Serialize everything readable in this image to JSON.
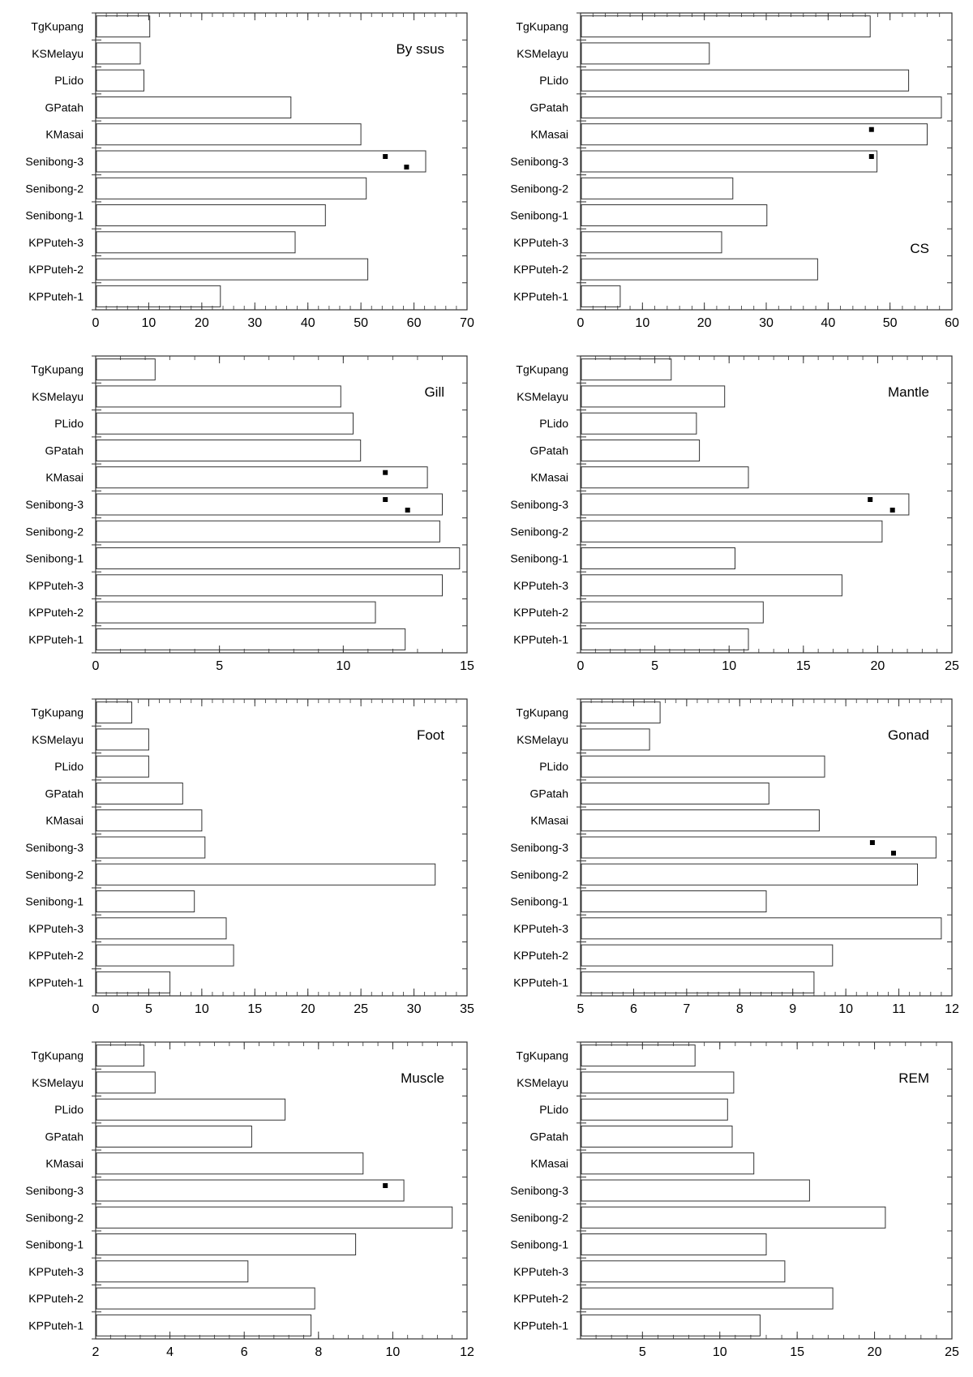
{
  "chart_data": [
    {
      "type": "bar",
      "orientation": "horizontal",
      "title": "By ssus",
      "title_position": "top-right",
      "categories": [
        "TgKupang",
        "KSMelayu",
        "PLido",
        "GPatah",
        "KMasai",
        "Senibong-3",
        "Senibong-2",
        "Senibong-1",
        "KPPuteh-3",
        "KPPuteh-2",
        "KPPuteh-1"
      ],
      "values": [
        10.2,
        8.4,
        9.1,
        36.8,
        50.0,
        62.2,
        51.0,
        43.3,
        37.6,
        51.3,
        23.5
      ],
      "xlim": [
        0,
        70
      ],
      "xticks": [
        0,
        10,
        20,
        30,
        40,
        50,
        60,
        70
      ],
      "tick_labels": [
        "0",
        "10",
        "20",
        "30",
        "40",
        "50",
        "60",
        "70"
      ],
      "markers": [
        {
          "category": "Senibong-3",
          "x": 54.6,
          "row": "upper"
        },
        {
          "category": "Senibong-3",
          "x": 58.6,
          "row": "lower"
        }
      ],
      "grid": false
    },
    {
      "type": "bar",
      "orientation": "horizontal",
      "title": "CS",
      "title_position": "bottom-right",
      "categories": [
        "TgKupang",
        "KSMelayu",
        "PLido",
        "GPatah",
        "KMasai",
        "Senibong-3",
        "Senibong-2",
        "Senibong-1",
        "KPPuteh-3",
        "KPPuteh-2",
        "KPPuteh-1"
      ],
      "values": [
        46.8,
        20.8,
        53.0,
        58.3,
        56.0,
        47.9,
        24.6,
        30.1,
        22.8,
        38.3,
        6.4
      ],
      "xlim": [
        0,
        60
      ],
      "xticks": [
        0,
        10,
        20,
        30,
        40,
        50,
        60
      ],
      "tick_labels": [
        "0",
        "10",
        "20",
        "30",
        "40",
        "50",
        "60"
      ],
      "markers": [
        {
          "category": "KMasai",
          "x": 47.0,
          "row": "upper"
        },
        {
          "category": "Senibong-3",
          "x": 47.0,
          "row": "upper"
        }
      ],
      "grid": false
    },
    {
      "type": "bar",
      "orientation": "horizontal",
      "title": "Gill",
      "title_position": "top-right",
      "categories": [
        "TgKupang",
        "KSMelayu",
        "PLido",
        "GPatah",
        "KMasai",
        "Senibong-3",
        "Senibong-2",
        "Senibong-1",
        "KPPuteh-3",
        "KPPuteh-2",
        "KPPuteh-1"
      ],
      "values": [
        2.4,
        9.9,
        10.4,
        10.7,
        13.4,
        14.0,
        13.9,
        14.7,
        14.0,
        11.3,
        12.5
      ],
      "xlim": [
        0,
        15
      ],
      "xticks": [
        0,
        5,
        10,
        15
      ],
      "tick_labels": [
        "0",
        "5",
        "10",
        "15"
      ],
      "markers": [
        {
          "category": "KMasai",
          "x": 11.7,
          "row": "upper"
        },
        {
          "category": "Senibong-3",
          "x": 11.7,
          "row": "upper"
        },
        {
          "category": "Senibong-3",
          "x": 12.6,
          "row": "lower"
        }
      ],
      "grid": false
    },
    {
      "type": "bar",
      "orientation": "horizontal",
      "title": "Mantle",
      "title_position": "top-right",
      "categories": [
        "TgKupang",
        "KSMelayu",
        "PLido",
        "GPatah",
        "KMasai",
        "Senibong-3",
        "Senibong-2",
        "Senibong-1",
        "KPPuteh-3",
        "KPPuteh-2",
        "KPPuteh-1"
      ],
      "values": [
        6.1,
        9.7,
        7.8,
        8.0,
        11.3,
        22.1,
        20.3,
        10.4,
        17.6,
        12.3,
        11.3
      ],
      "xlim": [
        0,
        25
      ],
      "xticks": [
        0,
        5,
        10,
        15,
        20,
        25
      ],
      "tick_labels": [
        "0",
        "5",
        "10",
        "15",
        "20",
        "25"
      ],
      "markers": [
        {
          "category": "Senibong-3",
          "x": 19.5,
          "row": "upper"
        },
        {
          "category": "Senibong-3",
          "x": 21.0,
          "row": "lower"
        }
      ],
      "grid": false
    },
    {
      "type": "bar",
      "orientation": "horizontal",
      "title": "Foot",
      "title_position": "top-right",
      "categories": [
        "TgKupang",
        "KSMelayu",
        "PLido",
        "GPatah",
        "KMasai",
        "Senibong-3",
        "Senibong-2",
        "Senibong-1",
        "KPPuteh-3",
        "KPPuteh-2",
        "KPPuteh-1"
      ],
      "values": [
        3.4,
        5.0,
        5.0,
        8.2,
        10.0,
        10.3,
        32.0,
        9.3,
        12.3,
        13.0,
        7.0
      ],
      "xlim": [
        0,
        35
      ],
      "xticks": [
        0,
        5,
        10,
        15,
        20,
        25,
        30,
        35
      ],
      "tick_labels": [
        "0",
        "5",
        "10",
        "15",
        "20",
        "25",
        "30",
        "35"
      ],
      "markers": [],
      "grid": false
    },
    {
      "type": "bar",
      "orientation": "horizontal",
      "title": "Gonad",
      "title_position": "top-right",
      "categories": [
        "TgKupang",
        "KSMelayu",
        "PLido",
        "GPatah",
        "KMasai",
        "Senibong-3",
        "Senibong-2",
        "Senibong-1",
        "KPPuteh-3",
        "KPPuteh-2",
        "KPPuteh-1"
      ],
      "values": [
        6.5,
        6.3,
        9.6,
        8.55,
        9.5,
        11.7,
        11.35,
        8.5,
        11.8,
        9.75,
        9.4
      ],
      "xlim": [
        5,
        12
      ],
      "xticks": [
        5,
        6,
        7,
        8,
        9,
        10,
        11,
        12
      ],
      "tick_labels": [
        "5",
        "6",
        "7",
        "8",
        "9",
        "10",
        "11",
        "12"
      ],
      "markers": [
        {
          "category": "Senibong-3",
          "x": 10.5,
          "row": "upper"
        },
        {
          "category": "Senibong-3",
          "x": 10.9,
          "row": "lower"
        }
      ],
      "grid": false
    },
    {
      "type": "bar",
      "orientation": "horizontal",
      "title": "Muscle",
      "title_position": "top-right",
      "categories": [
        "TgKupang",
        "KSMelayu",
        "PLido",
        "GPatah",
        "KMasai",
        "Senibong-3",
        "Senibong-2",
        "Senibong-1",
        "KPPuteh-3",
        "KPPuteh-2",
        "KPPuteh-1"
      ],
      "values": [
        3.3,
        3.6,
        7.1,
        6.2,
        9.2,
        10.3,
        11.6,
        9.0,
        6.1,
        7.9,
        7.8
      ],
      "xlim": [
        2,
        12
      ],
      "xticks": [
        2,
        4,
        6,
        8,
        10,
        12
      ],
      "tick_labels": [
        "2",
        "4",
        "6",
        "8",
        "10",
        "12"
      ],
      "markers": [
        {
          "category": "Senibong-3",
          "x": 9.8,
          "row": "upper"
        }
      ],
      "grid": false
    },
    {
      "type": "bar",
      "orientation": "horizontal",
      "title": "REM",
      "title_position": "top-right",
      "categories": [
        "TgKupang",
        "KSMelayu",
        "PLido",
        "GPatah",
        "KMasai",
        "Senibong-3",
        "Senibong-2",
        "Senibong-1",
        "KPPuteh-3",
        "KPPuteh-2",
        "KPPuteh-1"
      ],
      "values": [
        8.4,
        10.9,
        10.5,
        10.8,
        12.2,
        15.8,
        20.7,
        13.0,
        14.2,
        17.3,
        12.6
      ],
      "xlim": [
        1,
        25
      ],
      "xticks": [
        5,
        10,
        15,
        20,
        25
      ],
      "tick_labels": [
        "5",
        "10",
        "15",
        "20",
        "25"
      ],
      "markers": [],
      "grid": false
    }
  ]
}
